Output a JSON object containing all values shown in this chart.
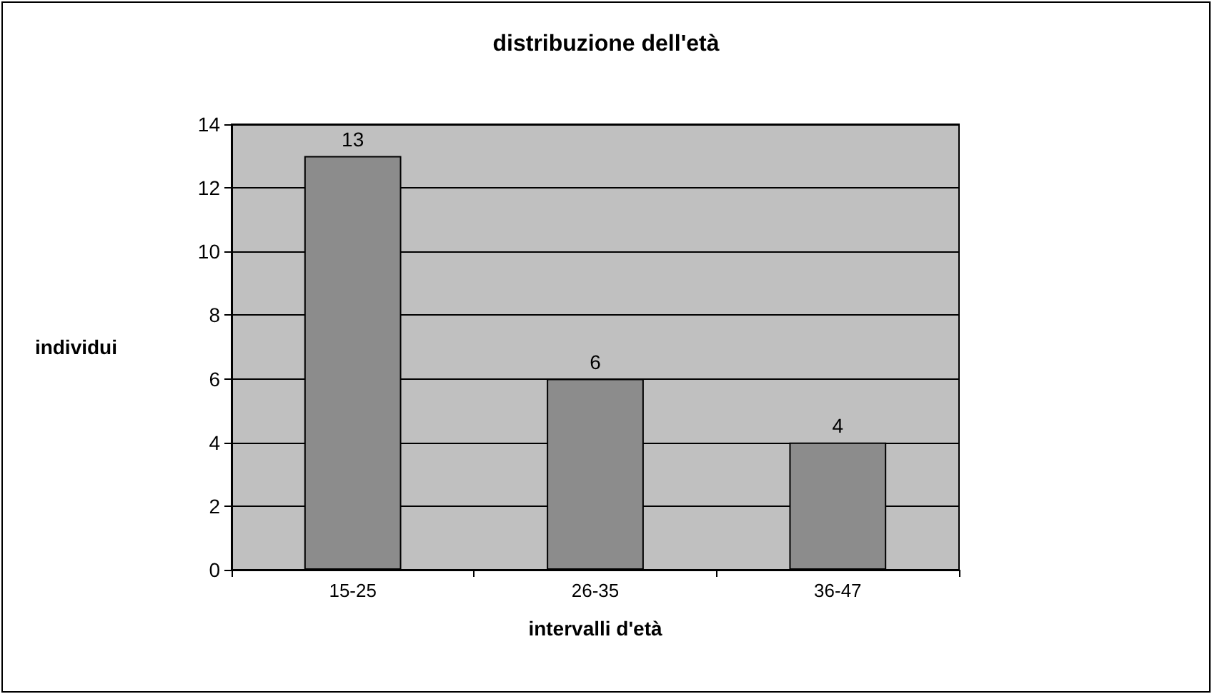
{
  "chart_data": {
    "type": "bar",
    "title": "distribuzione dell'età",
    "xlabel": "intervalli d'età",
    "ylabel": "individui",
    "categories": [
      "15-25",
      "26-35",
      "36-47"
    ],
    "values": [
      13,
      6,
      4
    ],
    "color": "#8c8c8c",
    "ylim": [
      0,
      14
    ],
    "yticks": [
      0,
      2,
      4,
      6,
      8,
      10,
      12,
      14
    ],
    "grid": "y",
    "data_labels": true
  }
}
